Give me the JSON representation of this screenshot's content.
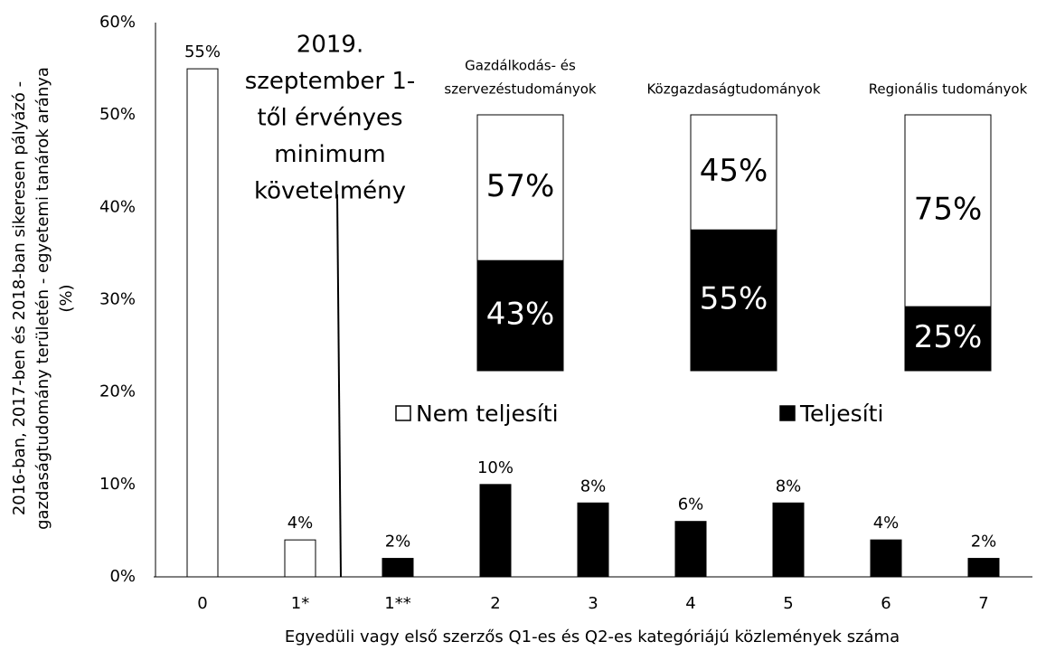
{
  "chart_data": [
    {
      "type": "bar",
      "y_label": [
        "2016-ban, 2017-ben és 2018-ban sikeresen pályázó -",
        "gazdaságtudomány területén - egyetemi tanárok aránya",
        "(%)"
      ],
      "x_label": "Egyedüli vagy első szerzős Q1-es és Q2-es kategóriájú közlemények száma",
      "annotation": [
        "2019.",
        "szeptember 1-",
        "től érvényes",
        "minimum",
        "követelmény"
      ],
      "categories": [
        "0",
        "1*",
        "1**",
        "2",
        "3",
        "4",
        "5",
        "6",
        "7"
      ],
      "series": [
        {
          "name": "Nem teljesíti",
          "color": "#ffffff",
          "values": [
            55,
            4,
            null,
            null,
            null,
            null,
            null,
            null,
            null
          ],
          "value_labels": [
            "55%",
            "4%",
            null,
            null,
            null,
            null,
            null,
            null,
            null
          ]
        },
        {
          "name": "Teljesíti",
          "color": "#000000",
          "values": [
            null,
            null,
            2,
            10,
            8,
            6,
            8,
            4,
            2
          ],
          "value_labels": [
            null,
            null,
            "2%",
            "10%",
            "8%",
            "6%",
            "8%",
            "4%",
            "2%"
          ]
        }
      ],
      "ylim": [
        0,
        60
      ],
      "yticks": [
        {
          "value": 0,
          "label": "0%"
        },
        {
          "value": 10,
          "label": "10%"
        },
        {
          "value": 20,
          "label": "20%"
        },
        {
          "value": 30,
          "label": "30%"
        },
        {
          "value": 40,
          "label": "40%"
        },
        {
          "value": 50,
          "label": "50%"
        },
        {
          "value": 60,
          "label": "60%"
        }
      ],
      "grid": false
    },
    {
      "type": "stacked_bar",
      "title": [
        "Gazdálkodás- és",
        "szervezéstudományok"
      ],
      "values": [
        57,
        43
      ],
      "value_labels": [
        "57%",
        "43%"
      ],
      "colors": [
        "#ffffff",
        "#000000"
      ]
    },
    {
      "type": "stacked_bar",
      "title": [
        "Közgazdaságtudományok"
      ],
      "values": [
        45,
        55
      ],
      "value_labels": [
        "45%",
        "55%"
      ],
      "colors": [
        "#ffffff",
        "#000000"
      ]
    },
    {
      "type": "stacked_bar",
      "title": [
        "Regionális tudományok"
      ],
      "values": [
        75,
        25
      ],
      "value_labels": [
        "75%",
        "25%"
      ],
      "colors": [
        "#ffffff",
        "#000000"
      ]
    }
  ]
}
